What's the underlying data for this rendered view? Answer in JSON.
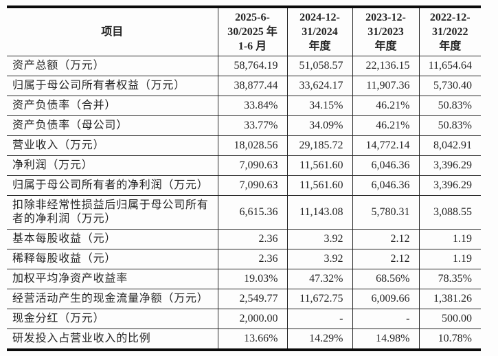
{
  "table": {
    "header": {
      "item_label": "项目",
      "periods": [
        {
          "lines": [
            "2025-6-",
            "30/2025 年",
            "1-6 月"
          ]
        },
        {
          "lines": [
            "2024-12-",
            "31/2024",
            "年度"
          ]
        },
        {
          "lines": [
            "2023-12-",
            "31/2023",
            "年度"
          ]
        },
        {
          "lines": [
            "2022-12-",
            "31/2022",
            "年度"
          ]
        }
      ]
    },
    "rows": [
      {
        "label": "资产总额（万元）",
        "values": [
          "58,764.19",
          "51,058.57",
          "22,136.15",
          "11,654.64"
        ]
      },
      {
        "label": "归属于母公司所有者权益（万元）",
        "values": [
          "38,877.44",
          "33,624.17",
          "11,907.36",
          "5,730.40"
        ]
      },
      {
        "label": "资产负债率（合并）",
        "values": [
          "33.84%",
          "34.15%",
          "46.21%",
          "50.83%"
        ]
      },
      {
        "label": "资产负债率（母公司）",
        "values": [
          "33.77%",
          "34.09%",
          "46.21%",
          "50.83%"
        ]
      },
      {
        "label": "营业收入（万元）",
        "values": [
          "18,028.56",
          "29,185.72",
          "14,772.14",
          "8,042.91"
        ]
      },
      {
        "label": "净利润（万元）",
        "values": [
          "7,090.63",
          "11,561.60",
          "6,046.36",
          "3,396.29"
        ]
      },
      {
        "label": "归属于母公司所有者的净利润（万元）",
        "values": [
          "7,090.63",
          "11,561.60",
          "6,046.36",
          "3,396.29"
        ]
      },
      {
        "label": "扣除非经常性损益后归属于母公司所有者的净利润（万元）",
        "values": [
          "6,615.36",
          "11,143.08",
          "5,780.31",
          "3,088.55"
        ]
      },
      {
        "label": "基本每股收益（元）",
        "values": [
          "2.36",
          "3.92",
          "2.12",
          "1.19"
        ]
      },
      {
        "label": "稀释每股收益（元）",
        "values": [
          "2.36",
          "3.92",
          "2.12",
          "1.19"
        ]
      },
      {
        "label": "加权平均净资产收益率",
        "values": [
          "19.03%",
          "47.32%",
          "68.56%",
          "78.35%"
        ]
      },
      {
        "label": "经营活动产生的现金流量净额（万元）",
        "values": [
          "2,549.77",
          "11,672.75",
          "6,009.66",
          "1,381.26"
        ]
      },
      {
        "label": "现金分红（万元）",
        "values": [
          "2,000.00",
          "-",
          "-",
          "500.00"
        ]
      },
      {
        "label": "研发投入占营业收入的比例",
        "values": [
          "13.66%",
          "14.29%",
          "14.98%",
          "10.78%"
        ]
      }
    ]
  }
}
